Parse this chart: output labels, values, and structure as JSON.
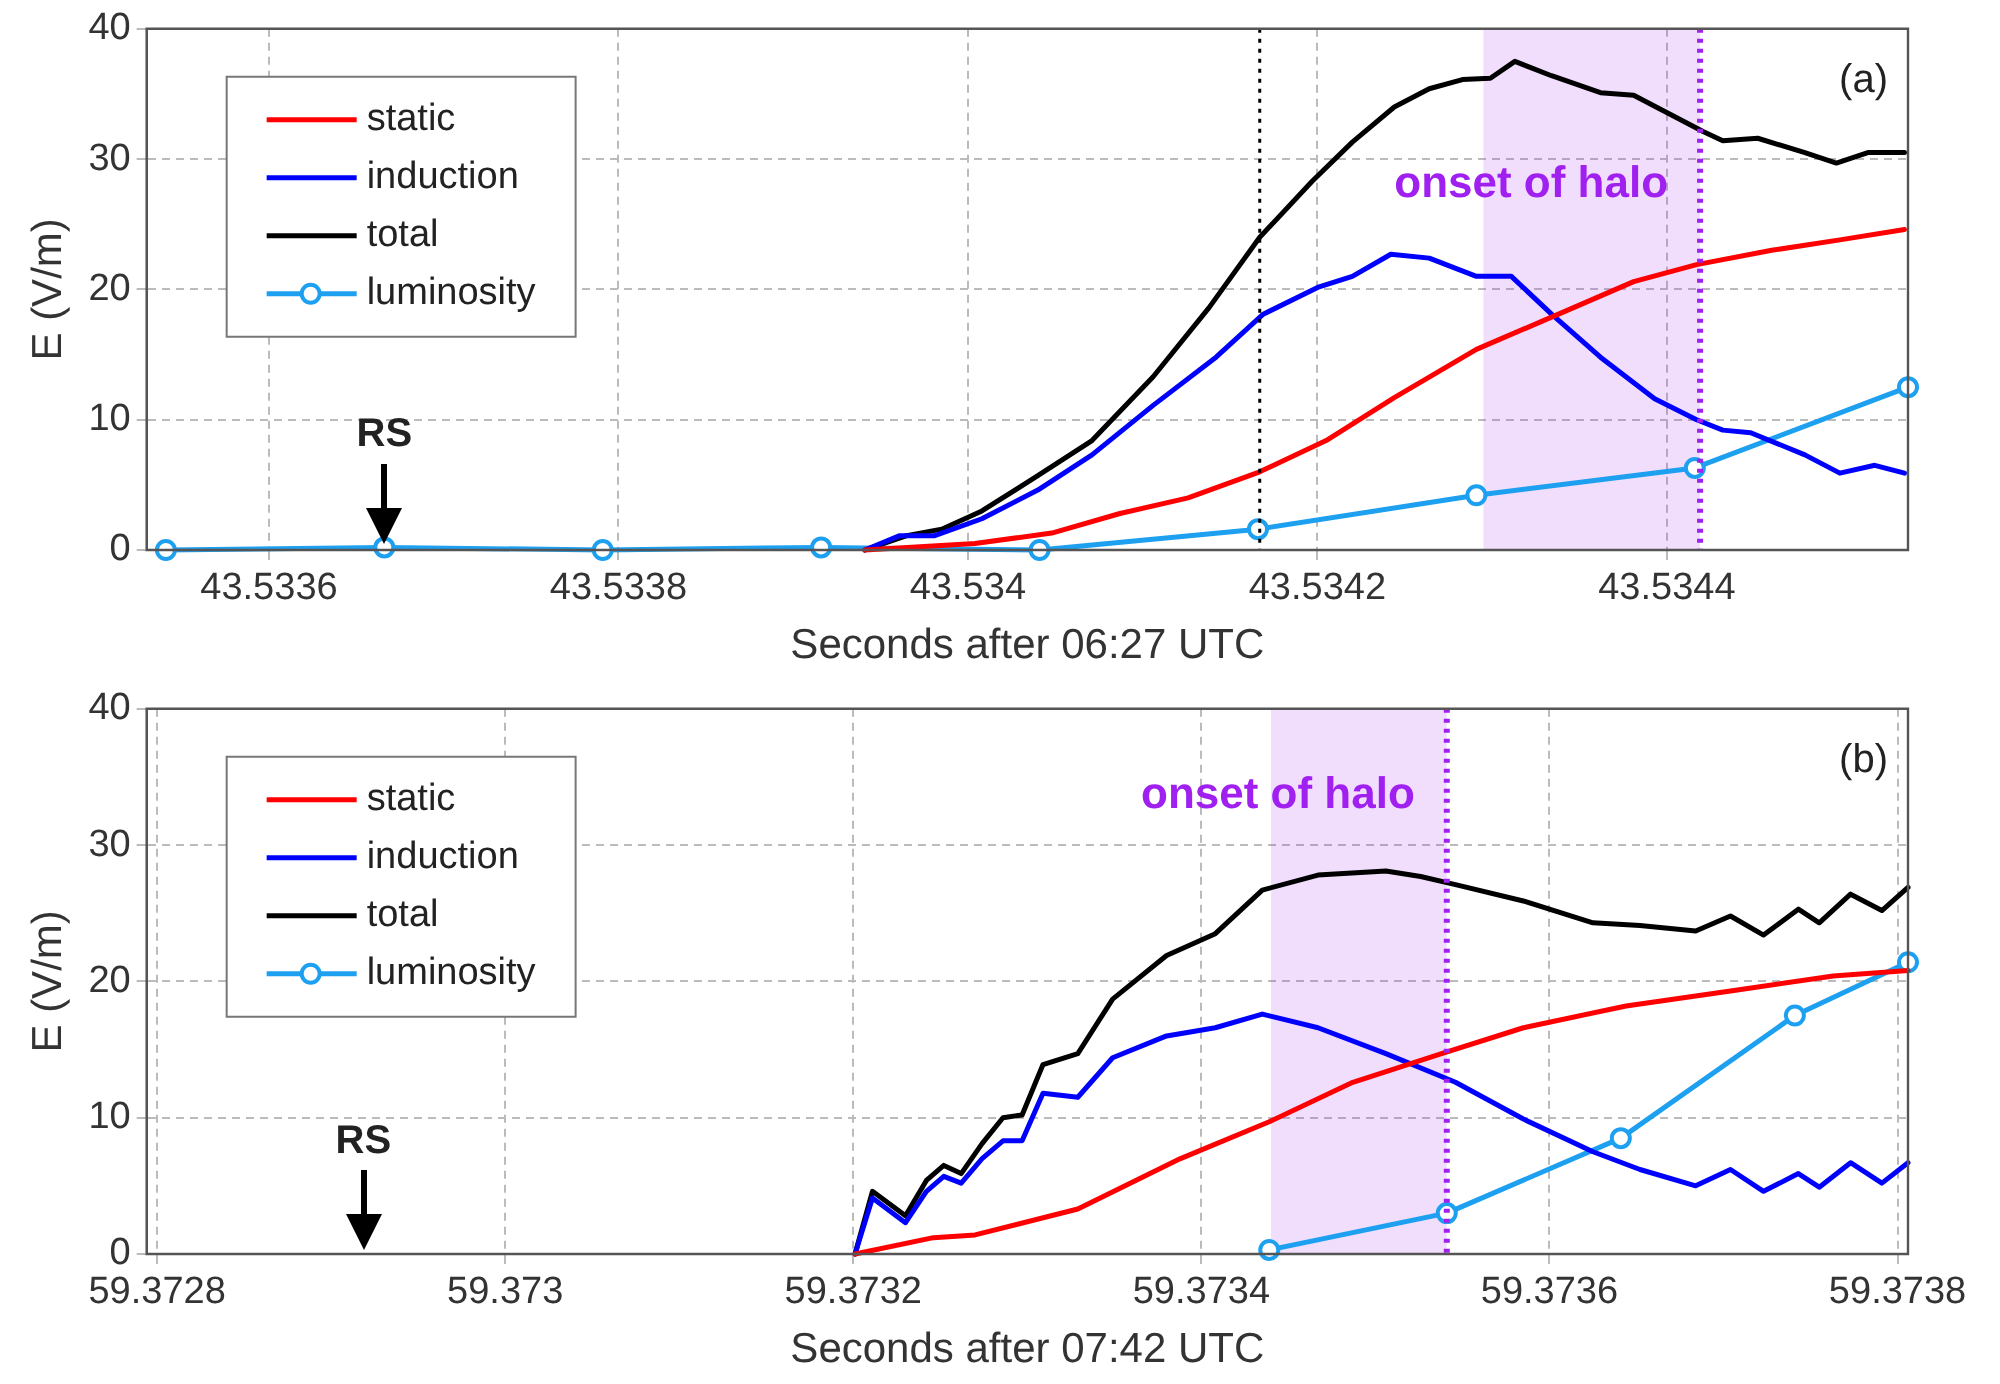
{
  "chart_data": [
    {
      "type": "line",
      "xlabel": "Seconds after 06:27 UTC",
      "ylabel": "E (V/m)",
      "xlim": [
        43.53353,
        43.534538
      ],
      "xticks": [
        43.5336,
        43.5338,
        43.534,
        43.5342,
        43.5344
      ],
      "ylim": [
        0,
        40
      ],
      "yticks": [
        0,
        10,
        20,
        30,
        40
      ],
      "grid": true,
      "legend": "top left",
      "line_style": "solid",
      "series": [
        {
          "name": "static",
          "color": "#ff0000",
          "x": [
            43.533941,
            43.534004,
            43.534048,
            43.534087,
            43.534126,
            43.534167,
            43.534205,
            43.534244,
            43.534291,
            43.534338,
            43.534381,
            43.534417,
            43.53446,
            43.534499,
            43.534536
          ],
          "values": [
            0,
            0.5,
            1.3,
            2.8,
            4,
            6,
            8.4,
            11.7,
            15.4,
            18.1,
            20.6,
            21.9,
            23,
            23.8,
            24.6
          ]
        },
        {
          "name": "induction",
          "color": "#0000ff",
          "x": [
            43.533941,
            43.533961,
            43.533981,
            43.534008,
            43.53404,
            43.534071,
            43.534106,
            43.534142,
            43.534169,
            43.534201,
            43.53422,
            43.534242,
            43.534264,
            43.534291,
            43.534311,
            43.534334,
            43.534362,
            43.534393,
            43.534417,
            43.534432,
            43.534448,
            43.534479,
            43.534499,
            43.534519,
            43.534536
          ],
          "values": [
            0,
            1.1,
            1.1,
            2.4,
            4.6,
            7.3,
            11.1,
            14.8,
            18.1,
            20.2,
            21,
            22.7,
            22.4,
            21,
            21,
            18.1,
            14.8,
            11.6,
            10,
            9.2,
            9,
            7.3,
            5.9,
            6.5,
            5.9
          ]
        },
        {
          "name": "total",
          "color": "#000000",
          "x": [
            43.533941,
            43.533965,
            43.533985,
            43.534008,
            43.53404,
            43.534071,
            43.534106,
            43.534138,
            43.534167,
            43.534197,
            43.53422,
            43.534244,
            43.534264,
            43.534283,
            43.534299,
            43.534313,
            43.534334,
            43.534362,
            43.534381,
            43.534401,
            43.534421,
            43.534432,
            43.534452,
            43.534479,
            43.534497,
            43.534515,
            43.534536
          ],
          "values": [
            0,
            1.1,
            1.6,
            3,
            5.7,
            8.4,
            13.3,
            18.6,
            24,
            28.3,
            31.3,
            34,
            35.4,
            36.1,
            36.2,
            37.5,
            36.4,
            35.1,
            34.9,
            33.5,
            32.1,
            31.4,
            31.6,
            30.5,
            29.7,
            30.5,
            30.5
          ]
        },
        {
          "name": "luminosity",
          "color": "#1ea0f0",
          "marker": "circle",
          "x": [
            43.533541,
            43.533666,
            43.533791,
            43.533916,
            43.534041,
            43.534166,
            43.534291,
            43.534416,
            43.534538
          ],
          "values": [
            0,
            0.2,
            0,
            0.2,
            0,
            1.6,
            4.2,
            6.3,
            12.5
          ]
        }
      ],
      "ref_lines": [
        {
          "axis": "x",
          "value": 43.534167,
          "color": "#000000",
          "line_style": "dotted"
        },
        {
          "axis": "x",
          "value": 43.534419,
          "color": "#a020f0",
          "line_style": "dotted"
        }
      ],
      "bands": [
        {
          "axis": "x",
          "from": 43.534295,
          "to": 43.534419,
          "label": "onset of halo",
          "color": "#a020f0"
        }
      ],
      "annotations": [
        "(a)",
        {
          "text": "RS",
          "x": 43.533666,
          "y": 0.2
        }
      ]
    },
    {
      "type": "line",
      "xlabel": "Seconds after 07:42 UTC",
      "ylabel": "E (V/m)",
      "xlim": [
        59.372794,
        59.373806
      ],
      "xticks": [
        59.3728,
        59.373,
        59.3732,
        59.3734,
        59.3736,
        59.3738
      ],
      "ylim": [
        0,
        40
      ],
      "yticks": [
        0,
        10,
        20,
        30,
        40
      ],
      "grid": true,
      "legend": "top left",
      "line_style": "solid",
      "series": [
        {
          "name": "static",
          "color": "#ff0000",
          "x": [
            59.373201,
            59.373246,
            59.37327,
            59.373329,
            59.373388,
            59.373439,
            59.373487,
            59.373538,
            59.373585,
            59.373644,
            59.373704,
            59.373763,
            59.373806
          ],
          "values": [
            0,
            1.2,
            1.4,
            3.3,
            7,
            9.7,
            12.6,
            14.7,
            16.6,
            18.2,
            19.3,
            20.4,
            20.8
          ]
        },
        {
          "name": "induction",
          "color": "#0000ff",
          "x": [
            59.373201,
            59.373211,
            59.37323,
            59.373242,
            59.373252,
            59.373262,
            59.373274,
            59.373286,
            59.373297,
            59.373309,
            59.373329,
            59.373349,
            59.37338,
            59.373408,
            59.373435,
            59.373467,
            59.373506,
            59.373546,
            59.373585,
            59.373625,
            59.373652,
            59.373684,
            59.373704,
            59.373723,
            59.373743,
            59.373755,
            59.373773,
            59.373791,
            59.373806
          ],
          "values": [
            0,
            4.1,
            2.3,
            4.6,
            5.7,
            5.2,
            7,
            8.3,
            8.3,
            11.8,
            11.5,
            14.4,
            16,
            16.6,
            17.6,
            16.6,
            14.7,
            12.6,
            9.9,
            7.5,
            6.2,
            5,
            6.2,
            4.6,
            5.9,
            4.9,
            6.7,
            5.2,
            6.7
          ]
        },
        {
          "name": "total",
          "color": "#000000",
          "x": [
            59.373201,
            59.373211,
            59.37323,
            59.373242,
            59.373252,
            59.373262,
            59.373274,
            59.373286,
            59.373297,
            59.373309,
            59.373329,
            59.373349,
            59.37338,
            59.373408,
            59.373435,
            59.373467,
            59.373506,
            59.373526,
            59.373546,
            59.373585,
            59.373625,
            59.373652,
            59.373684,
            59.373704,
            59.373723,
            59.373743,
            59.373755,
            59.373773,
            59.373791,
            59.373806
          ],
          "values": [
            0,
            4.6,
            2.8,
            5.4,
            6.5,
            5.9,
            8.1,
            10,
            10.2,
            13.9,
            14.7,
            18.7,
            21.9,
            23.5,
            26.7,
            27.8,
            28.1,
            27.7,
            27.1,
            25.9,
            24.3,
            24.1,
            23.7,
            24.8,
            23.4,
            25.3,
            24.3,
            26.4,
            25.2,
            26.9
          ]
        },
        {
          "name": "luminosity",
          "color": "#1ea0f0",
          "marker": "circle",
          "x": [
            59.373439,
            59.373541,
            59.373641,
            59.373741,
            59.373806
          ],
          "values": [
            0.3,
            3,
            8.5,
            17.5,
            21.4
          ]
        }
      ],
      "ref_lines": [
        {
          "axis": "x",
          "value": 59.373541,
          "color": "#a020f0",
          "line_style": "dotted"
        }
      ],
      "bands": [
        {
          "axis": "x",
          "from": 59.37344,
          "to": 59.373541,
          "label": "onset of halo",
          "color": "#a020f0"
        }
      ],
      "annotations": [
        "(b)",
        "RS"
      ]
    }
  ]
}
